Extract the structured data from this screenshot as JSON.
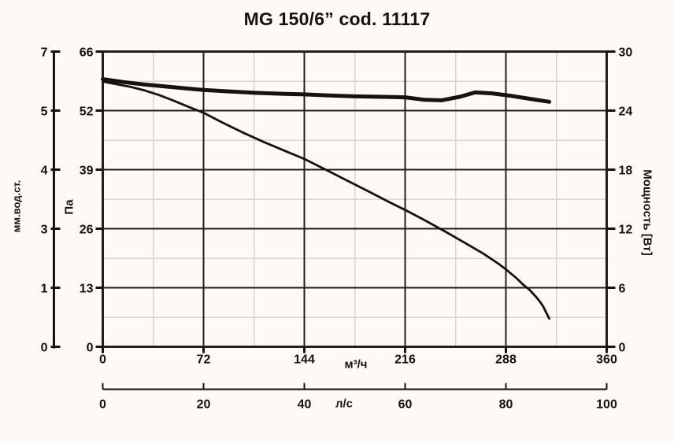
{
  "title": "MG 150/6” cod. 11117",
  "chart_data": {
    "type": "line",
    "title": "MG 150/6” cod. 11117",
    "x_axis": {
      "unit": "м³/ч",
      "ticks": [
        "0",
        "72",
        "144",
        "216",
        "288",
        "360"
      ],
      "range": [
        0,
        360
      ]
    },
    "x_axis_secondary": {
      "unit": "л/с",
      "ticks": [
        "0",
        "20",
        "40",
        "60",
        "80",
        "100"
      ],
      "range": [
        0,
        100
      ]
    },
    "y_axis_pressure_pa": {
      "unit": "Па",
      "ticks": [
        "66",
        "52",
        "39",
        "26",
        "13",
        "0"
      ],
      "range": [
        0,
        66
      ]
    },
    "y_axis_pressure_mm": {
      "unit": "мм.вод.ст.",
      "ticks": [
        "7",
        "5",
        "4",
        "3",
        "1",
        "0"
      ],
      "range": [
        0,
        7
      ]
    },
    "y_axis_power": {
      "unit": "Мощность [Вт]",
      "ticks": [
        "30",
        "24",
        "18",
        "12",
        "6",
        "0"
      ],
      "range": [
        0,
        30
      ]
    },
    "series": [
      {
        "name": "pressure-curve",
        "y_unit": "Па",
        "x_unit": "м³/ч",
        "stroke_width": 2.8,
        "points": [
          [
            0,
            59.3
          ],
          [
            10,
            58.7
          ],
          [
            20,
            58.1
          ],
          [
            30,
            57.3
          ],
          [
            40,
            56.3
          ],
          [
            50,
            55.1
          ],
          [
            60,
            53.8
          ],
          [
            72,
            52.3
          ],
          [
            85,
            50.2
          ],
          [
            100,
            47.9
          ],
          [
            115,
            45.8
          ],
          [
            130,
            43.8
          ],
          [
            144,
            42.0
          ],
          [
            160,
            39.5
          ],
          [
            175,
            37.1
          ],
          [
            190,
            34.7
          ],
          [
            205,
            32.3
          ],
          [
            216,
            30.6
          ],
          [
            230,
            28.3
          ],
          [
            245,
            25.7
          ],
          [
            260,
            23.0
          ],
          [
            272,
            20.8
          ],
          [
            283,
            18.5
          ],
          [
            288,
            17.3
          ],
          [
            295,
            15.5
          ],
          [
            300,
            14.0
          ],
          [
            305,
            12.7
          ],
          [
            310,
            11.0
          ],
          [
            313,
            9.8
          ],
          [
            315,
            8.8
          ],
          [
            317,
            7.5
          ],
          [
            319,
            6.3
          ]
        ]
      },
      {
        "name": "power-curve",
        "y_unit": "Вт",
        "x_unit": "м³/ч",
        "stroke_width": 5,
        "points": [
          [
            0,
            27.2
          ],
          [
            15,
            26.9
          ],
          [
            30,
            26.65
          ],
          [
            45,
            26.45
          ],
          [
            60,
            26.25
          ],
          [
            72,
            26.1
          ],
          [
            90,
            25.95
          ],
          [
            110,
            25.8
          ],
          [
            130,
            25.7
          ],
          [
            144,
            25.65
          ],
          [
            160,
            25.55
          ],
          [
            180,
            25.45
          ],
          [
            200,
            25.4
          ],
          [
            216,
            25.35
          ],
          [
            230,
            25.1
          ],
          [
            242,
            25.05
          ],
          [
            255,
            25.4
          ],
          [
            266,
            25.85
          ],
          [
            278,
            25.75
          ],
          [
            292,
            25.5
          ],
          [
            305,
            25.2
          ],
          [
            319,
            24.9
          ]
        ]
      }
    ],
    "grid": {
      "x_major_step": 72,
      "x_minor_step": 36,
      "y_major_divisions": 5,
      "y_minor_per_major": 2,
      "legend": "none"
    }
  },
  "colors": {
    "ink": "#17120f",
    "grid_major": "#241e1a",
    "grid_minor": "#dbd4cf",
    "background": "#fcf9f6"
  }
}
